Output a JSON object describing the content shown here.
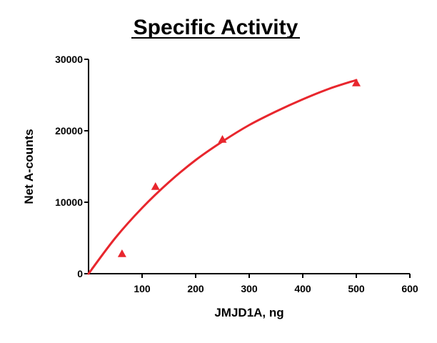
{
  "chart_data": {
    "type": "scatter",
    "title": "Specific Activity",
    "xlabel": "JMJD1A, ng",
    "ylabel": "Net A-counts",
    "xlim": [
      0,
      600
    ],
    "ylim": [
      0,
      30000
    ],
    "x_ticks": [
      100,
      200,
      300,
      400,
      500,
      600
    ],
    "y_ticks": [
      0,
      10000,
      20000,
      30000
    ],
    "grid": false,
    "legend": "none",
    "series": [
      {
        "marker": "triangle",
        "color": "#e8262d",
        "points": [
          {
            "x": 62.5,
            "y": 2800
          },
          {
            "x": 125,
            "y": 12200
          },
          {
            "x": 250,
            "y": 18800
          },
          {
            "x": 500,
            "y": 26700
          }
        ]
      }
    ],
    "fit": {
      "type": "curve",
      "color": "#e8262d",
      "points": [
        {
          "x": 0,
          "y": 0
        },
        {
          "x": 50,
          "y": 5000
        },
        {
          "x": 100,
          "y": 9200
        },
        {
          "x": 150,
          "y": 12800
        },
        {
          "x": 200,
          "y": 15900
        },
        {
          "x": 250,
          "y": 18500
        },
        {
          "x": 300,
          "y": 20800
        },
        {
          "x": 350,
          "y": 22700
        },
        {
          "x": 400,
          "y": 24400
        },
        {
          "x": 450,
          "y": 25900
        },
        {
          "x": 500,
          "y": 27100
        }
      ]
    }
  }
}
